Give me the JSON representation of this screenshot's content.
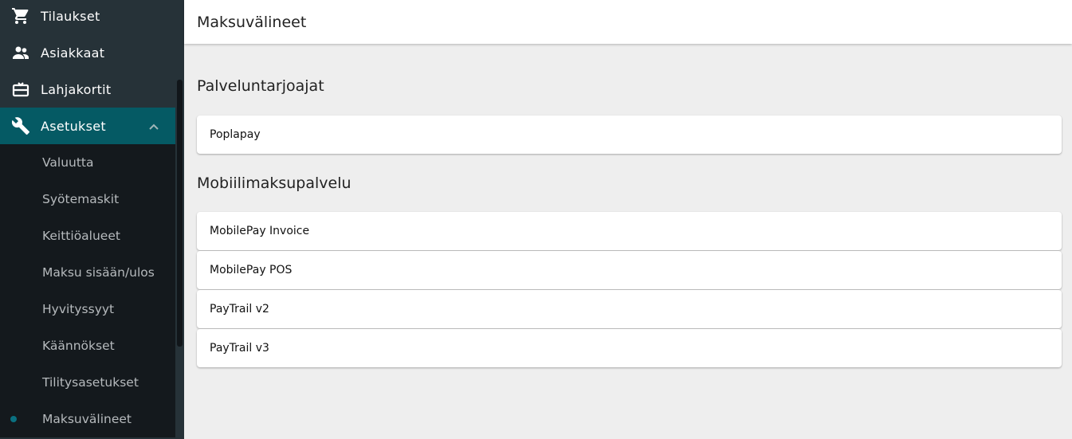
{
  "sidebar": {
    "items": [
      {
        "label": "Tilaukset",
        "icon": "cart-icon"
      },
      {
        "label": "Asiakkaat",
        "icon": "people-icon"
      },
      {
        "label": "Lahjakortit",
        "icon": "gift-card-icon"
      },
      {
        "label": "Asetukset",
        "icon": "wrench-icon",
        "expanded": true
      }
    ],
    "subitems": [
      "Valuutta",
      "Syötemaskit",
      "Keittiöalueet",
      "Maksu sisään/ulos",
      "Hyvityssyyt",
      "Käännökset",
      "Tilitysasetukset",
      "Maksuvälineet"
    ],
    "active_subitem": "Maksuvälineet"
  },
  "header": {
    "title": "Maksuvälineet"
  },
  "main": {
    "sections": [
      {
        "title": "Palveluntarjoajat",
        "items": [
          "Poplapay"
        ]
      },
      {
        "title": "Mobiilimaksupalvelu",
        "items": [
          "MobilePay Invoice",
          "MobilePay POS",
          "PayTrail v2",
          "PayTrail v3"
        ]
      }
    ]
  },
  "colors": {
    "accent": "#055a64",
    "sidebar": "#263238"
  }
}
